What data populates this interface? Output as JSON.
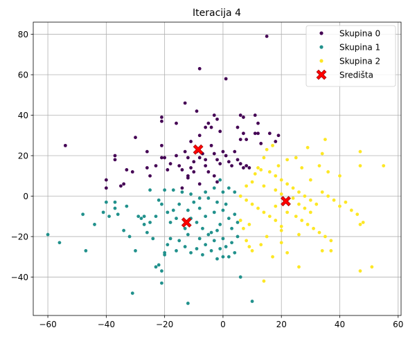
{
  "chart_data": {
    "type": "scatter",
    "title": "Iteracija 4",
    "xlabel": "",
    "ylabel": "",
    "xlim": [
      -65,
      61
    ],
    "ylim": [
      -59,
      86
    ],
    "xticks": [
      -60,
      -40,
      -20,
      0,
      20,
      40,
      60
    ],
    "yticks": [
      -40,
      -20,
      0,
      20,
      40,
      60,
      80
    ],
    "grid": true,
    "legend_position": "top-right",
    "series": [
      {
        "name": "Skupina 0",
        "color": "#440154",
        "marker": "circle",
        "points": [
          [
            15,
            79
          ],
          [
            -8,
            63
          ],
          [
            1,
            58
          ],
          [
            -13,
            46
          ],
          [
            -9,
            42
          ],
          [
            -3,
            40
          ],
          [
            -2,
            38
          ],
          [
            6,
            40
          ],
          [
            7,
            39
          ],
          [
            -21,
            39
          ],
          [
            -21,
            37
          ],
          [
            -16,
            36
          ],
          [
            -5,
            36
          ],
          [
            11,
            40
          ],
          [
            12,
            36
          ],
          [
            -30,
            29
          ],
          [
            -11,
            27
          ],
          [
            -8,
            30
          ],
          [
            -6,
            34
          ],
          [
            -4,
            34
          ],
          [
            -1,
            32
          ],
          [
            5,
            34
          ],
          [
            6,
            28
          ],
          [
            7,
            31
          ],
          [
            8,
            28
          ],
          [
            11,
            31
          ],
          [
            12,
            31
          ],
          [
            16,
            31
          ],
          [
            19,
            30
          ],
          [
            18,
            27
          ],
          [
            13,
            26
          ],
          [
            -37,
            20
          ],
          [
            -37,
            18
          ],
          [
            -40,
            8
          ],
          [
            -40,
            4
          ],
          [
            -34,
            6
          ],
          [
            -35,
            5
          ],
          [
            -33,
            13
          ],
          [
            -31,
            12
          ],
          [
            -26,
            22
          ],
          [
            -26,
            14
          ],
          [
            -25,
            10
          ],
          [
            -23,
            15
          ],
          [
            -21,
            25
          ],
          [
            -21,
            19
          ],
          [
            -20,
            19
          ],
          [
            -19,
            13
          ],
          [
            -18,
            16
          ],
          [
            -16,
            20
          ],
          [
            -15,
            15
          ],
          [
            -14,
            13
          ],
          [
            -13,
            22
          ],
          [
            -12,
            19
          ],
          [
            -12,
            10
          ],
          [
            -11,
            14
          ],
          [
            -10,
            17
          ],
          [
            -10,
            12
          ],
          [
            -9,
            22
          ],
          [
            -8,
            19
          ],
          [
            -7,
            21
          ],
          [
            -6,
            18
          ],
          [
            -6,
            15
          ],
          [
            -4,
            25
          ],
          [
            -3,
            21
          ],
          [
            -2,
            18
          ],
          [
            -1,
            16
          ],
          [
            0,
            22
          ],
          [
            1,
            20
          ],
          [
            2,
            17
          ],
          [
            3,
            15
          ],
          [
            4,
            22
          ],
          [
            5,
            18
          ],
          [
            6,
            16
          ],
          [
            7,
            14
          ],
          [
            8,
            15
          ],
          [
            9,
            14
          ],
          [
            -5,
            12
          ],
          [
            -3,
            10
          ],
          [
            -2,
            7
          ],
          [
            -8,
            6
          ],
          [
            -12,
            9
          ],
          [
            -14,
            4
          ],
          [
            -54,
            25
          ]
        ]
      },
      {
        "name": "Skupina 1",
        "color": "#21918c",
        "marker": "circle",
        "points": [
          [
            -60,
            -19
          ],
          [
            -56,
            -23
          ],
          [
            -48,
            -9
          ],
          [
            -47,
            -27
          ],
          [
            -44,
            -14
          ],
          [
            -41,
            -8
          ],
          [
            -40,
            -3
          ],
          [
            -39,
            -10
          ],
          [
            -37,
            -6
          ],
          [
            -37,
            -3
          ],
          [
            -36,
            -9
          ],
          [
            -33,
            -5
          ],
          [
            -29,
            -10
          ],
          [
            -28,
            -11
          ],
          [
            -27,
            -10
          ],
          [
            -27,
            -14
          ],
          [
            -26,
            -18
          ],
          [
            -25,
            -13
          ],
          [
            -24,
            -21
          ],
          [
            -23,
            -10
          ],
          [
            -22,
            -2
          ],
          [
            -21,
            -4
          ],
          [
            -20,
            3
          ],
          [
            -19,
            -8
          ],
          [
            -18,
            -13
          ],
          [
            -17,
            -7
          ],
          [
            -16,
            -11
          ],
          [
            -15,
            -4
          ],
          [
            -14,
            2
          ],
          [
            -13,
            -16
          ],
          [
            -12,
            -7
          ],
          [
            -11,
            -11
          ],
          [
            -10,
            -3
          ],
          [
            -9,
            -13
          ],
          [
            -8,
            -6
          ],
          [
            -7,
            -16
          ],
          [
            -6,
            -10
          ],
          [
            -5,
            -1
          ],
          [
            -4,
            -18
          ],
          [
            -3,
            -8
          ],
          [
            -2,
            -3
          ],
          [
            -1,
            -14
          ],
          [
            0,
            -7
          ],
          [
            1,
            -4
          ],
          [
            2,
            -11
          ],
          [
            3,
            -16
          ],
          [
            4,
            -9
          ],
          [
            5,
            -13
          ],
          [
            -20,
            -29
          ],
          [
            -19,
            -24
          ],
          [
            -18,
            -21
          ],
          [
            -16,
            -27
          ],
          [
            -15,
            -22
          ],
          [
            -13,
            -25
          ],
          [
            -12,
            -19
          ],
          [
            -11,
            -28
          ],
          [
            -9,
            -26
          ],
          [
            -8,
            -21
          ],
          [
            -7,
            -29
          ],
          [
            -6,
            -24
          ],
          [
            -5,
            -19
          ],
          [
            -4,
            -27
          ],
          [
            -3,
            -22
          ],
          [
            -2,
            -17
          ],
          [
            -1,
            -26
          ],
          [
            0,
            -21
          ],
          [
            1,
            -25
          ],
          [
            2,
            -30
          ],
          [
            3,
            -23
          ],
          [
            4,
            -28
          ],
          [
            5,
            -20
          ],
          [
            -23,
            -35
          ],
          [
            -22,
            -34
          ],
          [
            -21,
            -37
          ],
          [
            -20,
            -28
          ],
          [
            -30,
            -27
          ],
          [
            -21,
            -43
          ],
          [
            -31,
            -48
          ],
          [
            -12,
            -53
          ],
          [
            10,
            -52
          ],
          [
            6,
            -40
          ],
          [
            -2,
            -31
          ],
          [
            0,
            -30
          ],
          [
            -32,
            -20
          ],
          [
            -25,
            3
          ],
          [
            -17,
            3
          ],
          [
            -11,
            1
          ],
          [
            -8,
            -1
          ],
          [
            -6,
            2
          ],
          [
            -3,
            4
          ],
          [
            0,
            2
          ],
          [
            -1,
            8
          ],
          [
            2,
            4
          ],
          [
            4,
            2
          ],
          [
            -34,
            -17
          ]
        ]
      },
      {
        "name": "Skupina 2",
        "color": "#fde725",
        "marker": "circle",
        "points": [
          [
            35,
            28
          ],
          [
            29,
            24
          ],
          [
            34,
            21
          ],
          [
            33,
            15
          ],
          [
            40,
            10
          ],
          [
            47,
            22
          ],
          [
            47,
            15
          ],
          [
            55,
            15
          ],
          [
            36,
            12
          ],
          [
            30,
            8
          ],
          [
            22,
            18
          ],
          [
            19,
            15
          ],
          [
            17,
            25
          ],
          [
            25,
            19
          ],
          [
            27,
            14
          ],
          [
            15,
            23
          ],
          [
            14,
            19
          ],
          [
            12,
            14
          ],
          [
            11,
            11
          ],
          [
            13,
            13
          ],
          [
            16,
            12
          ],
          [
            18,
            10
          ],
          [
            20,
            8
          ],
          [
            22,
            6
          ],
          [
            24,
            4
          ],
          [
            26,
            2
          ],
          [
            28,
            0
          ],
          [
            30,
            -2
          ],
          [
            32,
            -4
          ],
          [
            34,
            2
          ],
          [
            36,
            0
          ],
          [
            38,
            -2
          ],
          [
            40,
            -5
          ],
          [
            42,
            -3
          ],
          [
            44,
            -7
          ],
          [
            46,
            -9
          ],
          [
            25,
            -10
          ],
          [
            27,
            -12
          ],
          [
            29,
            -14
          ],
          [
            31,
            -16
          ],
          [
            33,
            -18
          ],
          [
            35,
            -20
          ],
          [
            37,
            -22
          ],
          [
            26,
            -19
          ],
          [
            20,
            -15
          ],
          [
            18,
            -12
          ],
          [
            16,
            -10
          ],
          [
            14,
            -8
          ],
          [
            12,
            -6
          ],
          [
            10,
            -4
          ],
          [
            8,
            -2
          ],
          [
            6,
            0
          ],
          [
            8,
            5
          ],
          [
            10,
            7
          ],
          [
            14,
            5
          ],
          [
            18,
            3
          ],
          [
            20,
            1
          ],
          [
            24,
            -1
          ],
          [
            26,
            -4
          ],
          [
            28,
            -6
          ],
          [
            30,
            -8
          ],
          [
            15,
            -20
          ],
          [
            13,
            -24
          ],
          [
            10,
            -27
          ],
          [
            8,
            -22
          ],
          [
            20,
            -23
          ],
          [
            26,
            -35
          ],
          [
            22,
            -28
          ],
          [
            17,
            -30
          ],
          [
            14,
            -42
          ],
          [
            9,
            -25
          ],
          [
            34,
            -27
          ],
          [
            37,
            -27
          ],
          [
            48,
            -13
          ],
          [
            47,
            -14
          ],
          [
            51,
            -35
          ],
          [
            47,
            -37
          ],
          [
            18,
            -5
          ],
          [
            22,
            -8
          ],
          [
            9,
            -14
          ],
          [
            7,
            -16
          ],
          [
            6,
            -12
          ],
          [
            20,
            -17
          ]
        ]
      },
      {
        "name": "Središta",
        "color": "#ff0000",
        "marker": "x",
        "points": [
          [
            -8.5,
            23
          ],
          [
            -12.5,
            -13
          ],
          [
            21.5,
            -2.5
          ]
        ]
      }
    ]
  }
}
